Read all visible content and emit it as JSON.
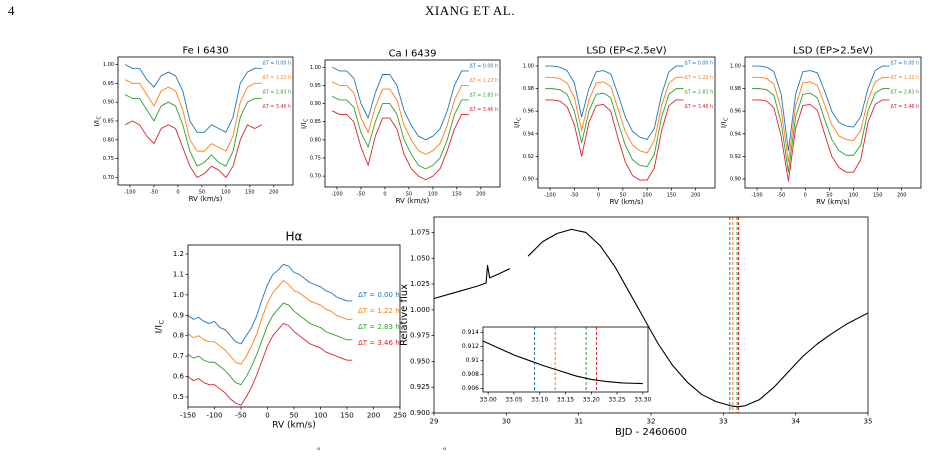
{
  "header": {
    "page_number": "4",
    "running_head": "XIANG ET AL."
  },
  "footer_marks": [
    "°",
    "°"
  ],
  "chart_data": [
    {
      "type": "line",
      "title": "Fe I 6430",
      "xlabel": "RV (km/s)",
      "ylabel": "I/I",
      "ylabel_sub": "C",
      "xlim": [
        -125,
        240
      ],
      "ylim": [
        0.68,
        1.02
      ],
      "xticks": [
        -100,
        -50,
        0,
        50,
        100,
        150,
        200
      ],
      "yticks": [
        {
          "value": 0.7,
          "label": "0.70"
        },
        0.75,
        {
          "value": 0.8,
          "label": "0.80"
        },
        0.85,
        {
          "value": 0.9,
          "label": "0.90"
        },
        0.95,
        {
          "value": 1,
          "label": "1.00"
        }
      ],
      "x": [
        -110,
        -95,
        -80,
        -65,
        -50,
        -35,
        -20,
        -5,
        10,
        25,
        40,
        55,
        70,
        85,
        100,
        115,
        130,
        145,
        160,
        175
      ],
      "series": [
        {
          "name": "ΔT = 0.00 h",
          "color": "#1f77b4",
          "values": [
            1.0,
            0.99,
            0.99,
            0.96,
            0.94,
            0.97,
            0.98,
            0.97,
            0.93,
            0.85,
            0.82,
            0.82,
            0.84,
            0.83,
            0.82,
            0.86,
            0.95,
            0.98,
            0.99,
            0.99
          ]
        },
        {
          "name": "ΔT = 1.22 h",
          "color": "#ff7f0e",
          "values": [
            0.96,
            0.95,
            0.95,
            0.92,
            0.89,
            0.93,
            0.94,
            0.93,
            0.88,
            0.8,
            0.77,
            0.77,
            0.79,
            0.78,
            0.77,
            0.81,
            0.9,
            0.94,
            0.95,
            0.95
          ]
        },
        {
          "name": "ΔT = 2.83 h",
          "color": "#2ca02c",
          "values": [
            0.92,
            0.91,
            0.91,
            0.88,
            0.85,
            0.89,
            0.9,
            0.89,
            0.84,
            0.77,
            0.73,
            0.74,
            0.76,
            0.74,
            0.73,
            0.77,
            0.86,
            0.9,
            0.91,
            0.91
          ]
        },
        {
          "name": "ΔT = 3.46 h",
          "color": "#d62728",
          "values": [
            0.84,
            0.85,
            0.84,
            0.81,
            0.79,
            0.83,
            0.84,
            0.83,
            0.78,
            0.73,
            0.7,
            0.71,
            0.73,
            0.72,
            0.7,
            0.73,
            0.8,
            0.84,
            0.83,
            0.84
          ]
        }
      ]
    },
    {
      "type": "line",
      "title": "Ca I 6439",
      "xlabel": "RV (km/s)",
      "ylabel": "I/I",
      "ylabel_sub": "C",
      "xlim": [
        -125,
        240
      ],
      "ylim": [
        0.67,
        1.02
      ],
      "xticks": [
        -100,
        -50,
        0,
        50,
        100,
        150,
        200
      ],
      "yticks": [
        {
          "value": 0.7,
          "label": "0.70"
        },
        0.75,
        {
          "value": 0.8,
          "label": "0.80"
        },
        0.85,
        {
          "value": 0.9,
          "label": "0.90"
        },
        0.95,
        {
          "value": 1,
          "label": "1.00"
        }
      ],
      "x": [
        -110,
        -95,
        -80,
        -65,
        -50,
        -35,
        -20,
        -5,
        10,
        25,
        40,
        55,
        70,
        85,
        100,
        115,
        130,
        145,
        160,
        175
      ],
      "series": [
        {
          "name": "ΔT = 0.00 h",
          "color": "#1f77b4",
          "values": [
            1.0,
            0.99,
            0.99,
            0.97,
            0.9,
            0.86,
            0.93,
            0.98,
            0.98,
            0.95,
            0.88,
            0.84,
            0.81,
            0.8,
            0.81,
            0.83,
            0.88,
            0.95,
            0.99,
            0.99
          ]
        },
        {
          "name": "ΔT = 1.22 h",
          "color": "#ff7f0e",
          "values": [
            0.96,
            0.95,
            0.95,
            0.93,
            0.86,
            0.82,
            0.89,
            0.94,
            0.94,
            0.91,
            0.84,
            0.8,
            0.77,
            0.76,
            0.77,
            0.79,
            0.84,
            0.91,
            0.95,
            0.95
          ]
        },
        {
          "name": "ΔT = 2.83 h",
          "color": "#2ca02c",
          "values": [
            0.92,
            0.91,
            0.91,
            0.89,
            0.82,
            0.78,
            0.85,
            0.9,
            0.9,
            0.87,
            0.8,
            0.76,
            0.73,
            0.72,
            0.73,
            0.75,
            0.8,
            0.87,
            0.91,
            0.91
          ]
        },
        {
          "name": "ΔT = 3.46 h",
          "color": "#d62728",
          "values": [
            0.88,
            0.87,
            0.87,
            0.85,
            0.78,
            0.73,
            0.81,
            0.86,
            0.86,
            0.83,
            0.76,
            0.72,
            0.7,
            0.69,
            0.7,
            0.72,
            0.77,
            0.83,
            0.87,
            0.87
          ]
        }
      ]
    },
    {
      "type": "line",
      "title": "LSD (EP<2.5eV)",
      "xlabel": "RV (km/s)",
      "ylabel": "I/I",
      "ylabel_sub": "C",
      "xlim": [
        -125,
        240
      ],
      "ylim": [
        0.892,
        1.008
      ],
      "xticks": [
        -100,
        -50,
        0,
        50,
        100,
        150,
        200
      ],
      "yticks": [
        {
          "value": 0.9,
          "label": "0.90"
        },
        0.92,
        0.94,
        0.96,
        0.98,
        {
          "value": 1,
          "label": "1.00"
        }
      ],
      "x": [
        -110,
        -95,
        -80,
        -65,
        -50,
        -35,
        -20,
        -5,
        10,
        25,
        40,
        55,
        70,
        85,
        100,
        115,
        130,
        145,
        160,
        175
      ],
      "series": [
        {
          "name": "ΔT = 0.00 h",
          "color": "#1f77b4",
          "values": [
            1.0,
            1.0,
            0.999,
            0.996,
            0.985,
            0.955,
            0.98,
            0.995,
            0.996,
            0.993,
            0.975,
            0.955,
            0.942,
            0.937,
            0.935,
            0.945,
            0.975,
            0.995,
            1.0,
            1.0
          ]
        },
        {
          "name": "ΔT = 1.22 h",
          "color": "#ff7f0e",
          "values": [
            0.99,
            0.99,
            0.989,
            0.985,
            0.972,
            0.943,
            0.97,
            0.985,
            0.986,
            0.982,
            0.962,
            0.942,
            0.93,
            0.925,
            0.923,
            0.934,
            0.965,
            0.985,
            0.99,
            0.99
          ]
        },
        {
          "name": "ΔT = 2.83 h",
          "color": "#2ca02c",
          "values": [
            0.98,
            0.98,
            0.979,
            0.975,
            0.96,
            0.932,
            0.96,
            0.975,
            0.976,
            0.972,
            0.95,
            0.93,
            0.917,
            0.912,
            0.911,
            0.922,
            0.955,
            0.975,
            0.98,
            0.98
          ]
        },
        {
          "name": "ΔT = 3.46 h",
          "color": "#d62728",
          "values": [
            0.97,
            0.97,
            0.969,
            0.964,
            0.948,
            0.92,
            0.95,
            0.965,
            0.966,
            0.96,
            0.936,
            0.915,
            0.903,
            0.899,
            0.899,
            0.91,
            0.943,
            0.965,
            0.97,
            0.97
          ]
        }
      ]
    },
    {
      "type": "line",
      "title": "LSD (EP>2.5eV)",
      "xlabel": "RV (km/s)",
      "ylabel": "I/I",
      "ylabel_sub": "C",
      "xlim": [
        -125,
        240
      ],
      "ylim": [
        0.892,
        1.008
      ],
      "xticks": [
        -100,
        -50,
        0,
        50,
        100,
        150,
        200
      ],
      "yticks": [
        {
          "value": 0.9,
          "label": "0.90"
        },
        0.92,
        0.94,
        0.96,
        0.98,
        {
          "value": 1,
          "label": "1.00"
        }
      ],
      "x": [
        -110,
        -95,
        -80,
        -65,
        -50,
        -35,
        -20,
        -5,
        10,
        25,
        40,
        55,
        70,
        85,
        100,
        115,
        130,
        145,
        160,
        175
      ],
      "series": [
        {
          "name": "ΔT = 0.00 h",
          "color": "#1f77b4",
          "values": [
            1.0,
            1.0,
            0.999,
            0.995,
            0.975,
            0.925,
            0.975,
            0.995,
            0.996,
            0.994,
            0.978,
            0.96,
            0.95,
            0.947,
            0.946,
            0.955,
            0.98,
            0.996,
            1.0,
            1.0
          ]
        },
        {
          "name": "ΔT = 1.22 h",
          "color": "#ff7f0e",
          "values": [
            0.99,
            0.99,
            0.989,
            0.984,
            0.962,
            0.915,
            0.965,
            0.985,
            0.986,
            0.983,
            0.966,
            0.948,
            0.938,
            0.935,
            0.934,
            0.943,
            0.97,
            0.986,
            0.99,
            0.99
          ]
        },
        {
          "name": "ΔT = 2.83 h",
          "color": "#2ca02c",
          "values": [
            0.98,
            0.98,
            0.979,
            0.974,
            0.95,
            0.906,
            0.955,
            0.975,
            0.976,
            0.972,
            0.953,
            0.935,
            0.925,
            0.921,
            0.921,
            0.93,
            0.96,
            0.976,
            0.98,
            0.98
          ]
        },
        {
          "name": "ΔT = 3.46 h",
          "color": "#d62728",
          "values": [
            0.97,
            0.97,
            0.969,
            0.963,
            0.938,
            0.898,
            0.945,
            0.965,
            0.966,
            0.961,
            0.94,
            0.92,
            0.91,
            0.906,
            0.906,
            0.917,
            0.95,
            0.966,
            0.97,
            0.97
          ]
        }
      ]
    },
    {
      "type": "line",
      "title": "Hα",
      "xlabel": "RV (km/s)",
      "ylabel": "I/I",
      "ylabel_sub": "C",
      "xlim": [
        -150,
        250
      ],
      "ylim": [
        0.451,
        1.244
      ],
      "xticks": [
        -150,
        -100,
        -50,
        0,
        50,
        100,
        150,
        200,
        250
      ],
      "yticks": [
        0.5,
        0.6,
        0.7,
        0.8,
        0.9,
        {
          "value": 1,
          "label": "1.0"
        },
        1.1,
        1.2
      ],
      "x": [
        -150,
        -140,
        -130,
        -120,
        -110,
        -100,
        -90,
        -80,
        -70,
        -60,
        -50,
        -40,
        -30,
        -20,
        -10,
        0,
        10,
        20,
        30,
        40,
        50,
        60,
        70,
        80,
        90,
        100,
        110,
        120,
        130,
        140,
        150,
        160
      ],
      "series": [
        {
          "name": "ΔT = 0.00 h",
          "color": "#1f77b4",
          "values": [
            0.9,
            0.88,
            0.89,
            0.87,
            0.86,
            0.87,
            0.84,
            0.83,
            0.8,
            0.77,
            0.76,
            0.8,
            0.84,
            0.9,
            0.98,
            1.05,
            1.1,
            1.12,
            1.15,
            1.14,
            1.11,
            1.1,
            1.08,
            1.06,
            1.05,
            1.04,
            1.02,
            1.01,
            0.99,
            0.98,
            0.97,
            0.97
          ]
        },
        {
          "name": "ΔT = 1.22 h",
          "color": "#ff7f0e",
          "values": [
            0.81,
            0.79,
            0.8,
            0.78,
            0.77,
            0.77,
            0.75,
            0.73,
            0.7,
            0.67,
            0.66,
            0.7,
            0.75,
            0.81,
            0.89,
            0.96,
            1.01,
            1.04,
            1.07,
            1.05,
            1.02,
            1.01,
            0.99,
            0.97,
            0.96,
            0.95,
            0.93,
            0.92,
            0.9,
            0.89,
            0.88,
            0.88
          ]
        },
        {
          "name": "ΔT = 2.83 h",
          "color": "#2ca02c",
          "values": [
            0.71,
            0.69,
            0.7,
            0.68,
            0.67,
            0.67,
            0.65,
            0.63,
            0.6,
            0.57,
            0.56,
            0.6,
            0.65,
            0.71,
            0.78,
            0.85,
            0.9,
            0.93,
            0.96,
            0.95,
            0.92,
            0.9,
            0.88,
            0.86,
            0.85,
            0.84,
            0.82,
            0.81,
            0.8,
            0.79,
            0.78,
            0.78
          ]
        },
        {
          "name": "ΔT = 3.46 h",
          "color": "#d62728",
          "values": [
            0.6,
            0.58,
            0.59,
            0.57,
            0.56,
            0.56,
            0.54,
            0.52,
            0.49,
            0.47,
            0.46,
            0.5,
            0.55,
            0.61,
            0.68,
            0.75,
            0.8,
            0.83,
            0.86,
            0.85,
            0.82,
            0.8,
            0.78,
            0.76,
            0.75,
            0.74,
            0.72,
            0.71,
            0.7,
            0.69,
            0.68,
            0.68
          ]
        }
      ]
    },
    {
      "type": "line",
      "xlabel": "BJD - 2460600",
      "ylabel": "Relative flux",
      "xlim": [
        29,
        35
      ],
      "ylim": [
        0.9,
        1.09
      ],
      "xticks": [
        29,
        30,
        31,
        32,
        33,
        34,
        35
      ],
      "yticks": [
        {
          "value": 0.9,
          "label": "0.900"
        },
        0.925,
        {
          "value": 0.95,
          "label": "0.950"
        },
        0.975,
        {
          "value": 1,
          "label": "1.000"
        },
        1.025,
        {
          "value": 1.05,
          "label": "1.050"
        },
        1.075
      ],
      "x": [
        29.0,
        29.3,
        29.6,
        29.72,
        29.74,
        29.77,
        29.9,
        30.05,
        30.15,
        30.3,
        30.5,
        30.7,
        30.9,
        31.1,
        31.3,
        31.5,
        31.7,
        31.9,
        32.1,
        32.3,
        32.5,
        32.7,
        32.9,
        33.1,
        33.2,
        33.3,
        33.5,
        33.7,
        33.9,
        34.1,
        34.3,
        34.5,
        34.7,
        35.0
      ],
      "series": [
        {
          "color": "#000000",
          "values": [
            1.011,
            1.017,
            1.023,
            1.026,
            1.043,
            1.031,
            1.035,
            1.04,
            null,
            1.052,
            1.066,
            1.074,
            1.078,
            1.075,
            1.062,
            1.042,
            1.017,
            0.992,
            0.967,
            0.946,
            0.93,
            0.918,
            0.911,
            0.907,
            0.906,
            0.907,
            0.913,
            0.925,
            0.94,
            0.955,
            0.967,
            0.977,
            0.986,
            0.997
          ]
        }
      ],
      "vlines": [
        {
          "x": 33.09,
          "color": "#1f77b4"
        },
        {
          "x": 33.13,
          "color": "#ff7f0e"
        },
        {
          "x": 33.19,
          "color": "#2ca02c"
        },
        {
          "x": 33.21,
          "color": "#d62728"
        }
      ]
    },
    {
      "type": "line",
      "xlim": [
        32.99,
        33.31
      ],
      "ylim": [
        0.9055,
        0.9148
      ],
      "xticks": [
        {
          "value": 33,
          "label": "33.00"
        },
        33.05,
        {
          "value": 33.1,
          "label": "33.10"
        },
        33.15,
        {
          "value": 33.2,
          "label": "33.20"
        },
        33.25,
        {
          "value": 33.3,
          "label": "33.30"
        }
      ],
      "yticks": [
        0.906,
        0.908,
        0.91,
        0.912,
        0.914
      ],
      "x": [
        32.99,
        33.02,
        33.05,
        33.08,
        33.11,
        33.14,
        33.17,
        33.2,
        33.23,
        33.26,
        33.3
      ],
      "series": [
        {
          "color": "#000000",
          "values": [
            0.9128,
            0.9118,
            0.9108,
            0.91,
            0.9092,
            0.9085,
            0.9078,
            0.9073,
            0.907,
            0.9068,
            0.9067
          ]
        }
      ],
      "vlines": [
        {
          "x": 33.09,
          "color": "#1f77b4"
        },
        {
          "x": 33.13,
          "color": "#ff7f0e"
        },
        {
          "x": 33.19,
          "color": "#2ca02c"
        },
        {
          "x": 33.21,
          "color": "#d62728"
        }
      ]
    }
  ]
}
